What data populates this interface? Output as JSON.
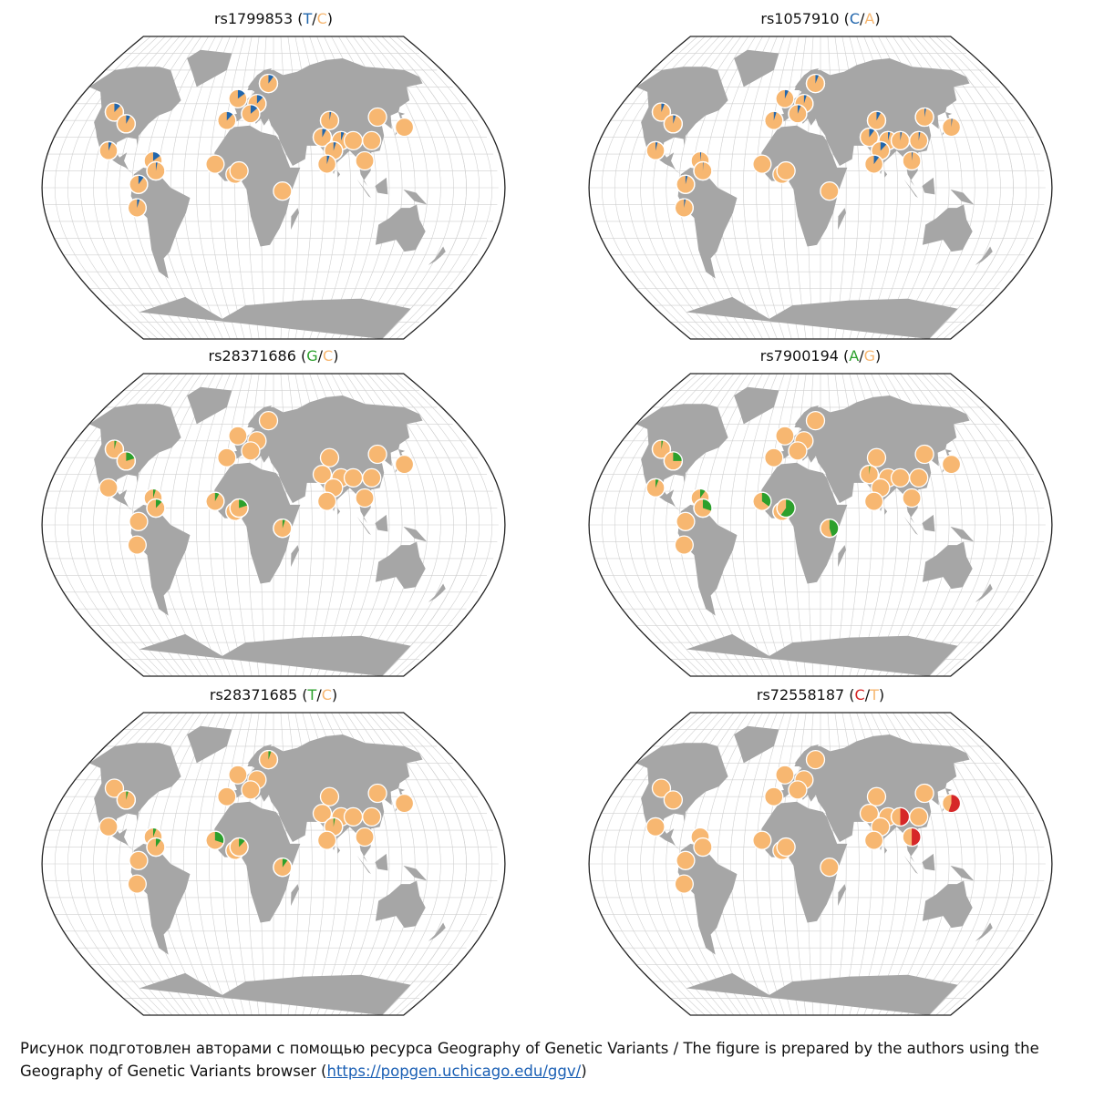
{
  "colors": {
    "ocean": "#ffffff",
    "land": "#a6a6a6",
    "grid": "#d0d0d0",
    "border": "#222222",
    "pie_outline": "#ffffff",
    "allele_common": "#f7b771",
    "blue": "#2166ac",
    "green": "#2ca02c",
    "red": "#d62728"
  },
  "panels": [
    {
      "rsid": "rs1799853",
      "open": " (",
      "a1": "T",
      "sep": "/",
      "a2": "C",
      "close": ")",
      "a1_color": "#2166ac",
      "a2_color": "#f7b771",
      "pies": [
        {
          "lon": 15,
          "lat": 50,
          "f": 0.12
        },
        {
          "lon": 25,
          "lat": 62,
          "f": 0.1
        },
        {
          "lon": -3,
          "lat": 53,
          "f": 0.15
        },
        {
          "lon": -10,
          "lat": 40,
          "f": 0.12
        },
        {
          "lon": 10,
          "lat": 44,
          "f": 0.14
        },
        {
          "lon": 78,
          "lat": 40,
          "f": 0.03
        },
        {
          "lon": 70,
          "lat": 30,
          "f": 0.08
        },
        {
          "lon": 85,
          "lat": 28,
          "f": 0.06
        },
        {
          "lon": 78,
          "lat": 22,
          "f": 0.05
        },
        {
          "lon": 72,
          "lat": 14,
          "f": 0.05
        },
        {
          "lon": 95,
          "lat": 28,
          "f": 0.0
        },
        {
          "lon": 110,
          "lat": 28,
          "f": 0.0
        },
        {
          "lon": 120,
          "lat": 42,
          "f": 0.0
        },
        {
          "lon": 140,
          "lat": 36,
          "f": 0.0
        },
        {
          "lon": 102,
          "lat": 16,
          "f": 0.0
        },
        {
          "lon": -110,
          "lat": 45,
          "f": 0.12
        },
        {
          "lon": -95,
          "lat": 38,
          "f": 0.08
        },
        {
          "lon": -102,
          "lat": 22,
          "f": 0.06
        },
        {
          "lon": -65,
          "lat": 16,
          "f": 0.15
        },
        {
          "lon": -62,
          "lat": 10,
          "f": 0.03
        },
        {
          "lon": -75,
          "lat": 2,
          "f": 0.1
        },
        {
          "lon": -77,
          "lat": -12,
          "f": 0.05
        },
        {
          "lon": -16,
          "lat": 14,
          "f": 0.0
        },
        {
          "lon": 0,
          "lat": 8,
          "f": 0.0
        },
        {
          "lon": 3,
          "lat": 10,
          "f": 0.0
        },
        {
          "lon": 37,
          "lat": -2,
          "f": 0.0
        }
      ]
    },
    {
      "rsid": "rs1057910",
      "open": " (",
      "a1": "C",
      "sep": "/",
      "a2": "A",
      "close": ")",
      "a1_color": "#2166ac",
      "a2_color": "#f7b771",
      "pies": [
        {
          "lon": 15,
          "lat": 50,
          "f": 0.05
        },
        {
          "lon": 25,
          "lat": 62,
          "f": 0.06
        },
        {
          "lon": -3,
          "lat": 53,
          "f": 0.07
        },
        {
          "lon": -10,
          "lat": 40,
          "f": 0.05
        },
        {
          "lon": 10,
          "lat": 44,
          "f": 0.06
        },
        {
          "lon": 78,
          "lat": 40,
          "f": 0.08
        },
        {
          "lon": 70,
          "lat": 30,
          "f": 0.1
        },
        {
          "lon": 85,
          "lat": 28,
          "f": 0.04
        },
        {
          "lon": 78,
          "lat": 22,
          "f": 0.12
        },
        {
          "lon": 72,
          "lat": 14,
          "f": 0.1
        },
        {
          "lon": 95,
          "lat": 28,
          "f": 0.03
        },
        {
          "lon": 110,
          "lat": 28,
          "f": 0.03
        },
        {
          "lon": 120,
          "lat": 42,
          "f": 0.03
        },
        {
          "lon": 140,
          "lat": 36,
          "f": 0.02
        },
        {
          "lon": 102,
          "lat": 16,
          "f": 0.02
        },
        {
          "lon": -110,
          "lat": 45,
          "f": 0.06
        },
        {
          "lon": -95,
          "lat": 38,
          "f": 0.05
        },
        {
          "lon": -102,
          "lat": 22,
          "f": 0.04
        },
        {
          "lon": -65,
          "lat": 16,
          "f": 0.02
        },
        {
          "lon": -62,
          "lat": 10,
          "f": 0.01
        },
        {
          "lon": -75,
          "lat": 2,
          "f": 0.04
        },
        {
          "lon": -77,
          "lat": -12,
          "f": 0.03
        },
        {
          "lon": -16,
          "lat": 14,
          "f": 0.0
        },
        {
          "lon": 0,
          "lat": 8,
          "f": 0.0
        },
        {
          "lon": 3,
          "lat": 10,
          "f": 0.0
        },
        {
          "lon": 37,
          "lat": -2,
          "f": 0.0
        }
      ]
    },
    {
      "rsid": "rs28371686",
      "open": " (",
      "a1": "G",
      "sep": "/",
      "a2": "C",
      "close": ")",
      "a1_color": "#2ca02c",
      "a2_color": "#f7b771",
      "pies": [
        {
          "lon": 15,
          "lat": 50,
          "f": 0.0
        },
        {
          "lon": 25,
          "lat": 62,
          "f": 0.0
        },
        {
          "lon": -3,
          "lat": 53,
          "f": 0.0
        },
        {
          "lon": -10,
          "lat": 40,
          "f": 0.0
        },
        {
          "lon": 10,
          "lat": 44,
          "f": 0.0
        },
        {
          "lon": 78,
          "lat": 40,
          "f": 0.0
        },
        {
          "lon": 70,
          "lat": 30,
          "f": 0.0
        },
        {
          "lon": 85,
          "lat": 28,
          "f": 0.0
        },
        {
          "lon": 78,
          "lat": 22,
          "f": 0.0
        },
        {
          "lon": 72,
          "lat": 14,
          "f": 0.0
        },
        {
          "lon": 95,
          "lat": 28,
          "f": 0.0
        },
        {
          "lon": 110,
          "lat": 28,
          "f": 0.0
        },
        {
          "lon": 120,
          "lat": 42,
          "f": 0.0
        },
        {
          "lon": 140,
          "lat": 36,
          "f": 0.0
        },
        {
          "lon": 102,
          "lat": 16,
          "f": 0.0
        },
        {
          "lon": -110,
          "lat": 45,
          "f": 0.04
        },
        {
          "lon": -95,
          "lat": 38,
          "f": 0.2
        },
        {
          "lon": -102,
          "lat": 22,
          "f": 0.0
        },
        {
          "lon": -65,
          "lat": 16,
          "f": 0.05
        },
        {
          "lon": -62,
          "lat": 10,
          "f": 0.12
        },
        {
          "lon": -75,
          "lat": 2,
          "f": 0.0
        },
        {
          "lon": -77,
          "lat": -12,
          "f": 0.0
        },
        {
          "lon": -16,
          "lat": 14,
          "f": 0.08
        },
        {
          "lon": 0,
          "lat": 8,
          "f": 0.06
        },
        {
          "lon": 3,
          "lat": 10,
          "f": 0.2
        },
        {
          "lon": 37,
          "lat": -2,
          "f": 0.05
        }
      ]
    },
    {
      "rsid": "rs7900194",
      "open": " (",
      "a1": "A",
      "sep": "/",
      "a2": "G",
      "close": ")",
      "a1_color": "#2ca02c",
      "a2_color": "#f7b771",
      "pies": [
        {
          "lon": 15,
          "lat": 50,
          "f": 0.0
        },
        {
          "lon": 25,
          "lat": 62,
          "f": 0.0
        },
        {
          "lon": -3,
          "lat": 53,
          "f": 0.0
        },
        {
          "lon": -10,
          "lat": 40,
          "f": 0.0
        },
        {
          "lon": 10,
          "lat": 44,
          "f": 0.0
        },
        {
          "lon": 78,
          "lat": 40,
          "f": 0.0
        },
        {
          "lon": 70,
          "lat": 30,
          "f": 0.02
        },
        {
          "lon": 85,
          "lat": 28,
          "f": 0.0
        },
        {
          "lon": 78,
          "lat": 22,
          "f": 0.0
        },
        {
          "lon": 72,
          "lat": 14,
          "f": 0.0
        },
        {
          "lon": 95,
          "lat": 28,
          "f": 0.0
        },
        {
          "lon": 110,
          "lat": 28,
          "f": 0.0
        },
        {
          "lon": 120,
          "lat": 42,
          "f": 0.0
        },
        {
          "lon": 140,
          "lat": 36,
          "f": 0.0
        },
        {
          "lon": 102,
          "lat": 16,
          "f": 0.0
        },
        {
          "lon": -110,
          "lat": 45,
          "f": 0.03
        },
        {
          "lon": -95,
          "lat": 38,
          "f": 0.25
        },
        {
          "lon": -102,
          "lat": 22,
          "f": 0.06
        },
        {
          "lon": -65,
          "lat": 16,
          "f": 0.1
        },
        {
          "lon": -62,
          "lat": 10,
          "f": 0.3
        },
        {
          "lon": -75,
          "lat": 2,
          "f": 0.0
        },
        {
          "lon": -77,
          "lat": -12,
          "f": 0.0
        },
        {
          "lon": -16,
          "lat": 14,
          "f": 0.35
        },
        {
          "lon": 0,
          "lat": 8,
          "f": 0.3
        },
        {
          "lon": 3,
          "lat": 10,
          "f": 0.6
        },
        {
          "lon": 37,
          "lat": -2,
          "f": 0.45
        }
      ]
    },
    {
      "rsid": "rs28371685",
      "open": " (",
      "a1": "T",
      "sep": "/",
      "a2": "C",
      "close": ")",
      "a1_color": "#2ca02c",
      "a2_color": "#f7b771",
      "pies": [
        {
          "lon": 15,
          "lat": 50,
          "f": 0.0
        },
        {
          "lon": 25,
          "lat": 62,
          "f": 0.05
        },
        {
          "lon": -3,
          "lat": 53,
          "f": 0.0
        },
        {
          "lon": -10,
          "lat": 40,
          "f": 0.0
        },
        {
          "lon": 10,
          "lat": 44,
          "f": 0.0
        },
        {
          "lon": 78,
          "lat": 40,
          "f": 0.0
        },
        {
          "lon": 70,
          "lat": 30,
          "f": 0.0
        },
        {
          "lon": 85,
          "lat": 28,
          "f": 0.0
        },
        {
          "lon": 78,
          "lat": 22,
          "f": 0.03
        },
        {
          "lon": 72,
          "lat": 14,
          "f": 0.0
        },
        {
          "lon": 95,
          "lat": 28,
          "f": 0.0
        },
        {
          "lon": 110,
          "lat": 28,
          "f": 0.0
        },
        {
          "lon": 120,
          "lat": 42,
          "f": 0.0
        },
        {
          "lon": 140,
          "lat": 36,
          "f": 0.0
        },
        {
          "lon": 102,
          "lat": 16,
          "f": 0.0
        },
        {
          "lon": -110,
          "lat": 45,
          "f": 0.0
        },
        {
          "lon": -95,
          "lat": 38,
          "f": 0.04
        },
        {
          "lon": -102,
          "lat": 22,
          "f": 0.0
        },
        {
          "lon": -65,
          "lat": 16,
          "f": 0.06
        },
        {
          "lon": -62,
          "lat": 10,
          "f": 0.1
        },
        {
          "lon": -75,
          "lat": 2,
          "f": 0.0
        },
        {
          "lon": -77,
          "lat": -12,
          "f": 0.0
        },
        {
          "lon": -16,
          "lat": 14,
          "f": 0.3
        },
        {
          "lon": 0,
          "lat": 8,
          "f": 0.1
        },
        {
          "lon": 3,
          "lat": 10,
          "f": 0.12
        },
        {
          "lon": 37,
          "lat": -2,
          "f": 0.1
        }
      ]
    },
    {
      "rsid": "rs72558187",
      "open": " (",
      "a1": "C",
      "sep": "/",
      "a2": "T",
      "close": ")",
      "a1_color": "#d62728",
      "a2_color": "#f7b771",
      "pies": [
        {
          "lon": 15,
          "lat": 50,
          "f": 0.0
        },
        {
          "lon": 25,
          "lat": 62,
          "f": 0.0
        },
        {
          "lon": -3,
          "lat": 53,
          "f": 0.0
        },
        {
          "lon": -10,
          "lat": 40,
          "f": 0.0
        },
        {
          "lon": 10,
          "lat": 44,
          "f": 0.0
        },
        {
          "lon": 78,
          "lat": 40,
          "f": 0.0
        },
        {
          "lon": 70,
          "lat": 30,
          "f": 0.0
        },
        {
          "lon": 85,
          "lat": 28,
          "f": 0.0
        },
        {
          "lon": 78,
          "lat": 22,
          "f": 0.0
        },
        {
          "lon": 72,
          "lat": 14,
          "f": 0.0
        },
        {
          "lon": 95,
          "lat": 28,
          "f": 0.5
        },
        {
          "lon": 110,
          "lat": 28,
          "f": 0.0
        },
        {
          "lon": 120,
          "lat": 42,
          "f": 0.0
        },
        {
          "lon": 140,
          "lat": 36,
          "f": 0.55
        },
        {
          "lon": 102,
          "lat": 16,
          "f": 0.5
        },
        {
          "lon": -110,
          "lat": 45,
          "f": 0.0
        },
        {
          "lon": -95,
          "lat": 38,
          "f": 0.0
        },
        {
          "lon": -102,
          "lat": 22,
          "f": 0.0
        },
        {
          "lon": -65,
          "lat": 16,
          "f": 0.0
        },
        {
          "lon": -62,
          "lat": 10,
          "f": 0.0
        },
        {
          "lon": -75,
          "lat": 2,
          "f": 0.0
        },
        {
          "lon": -77,
          "lat": -12,
          "f": 0.0
        },
        {
          "lon": -16,
          "lat": 14,
          "f": 0.0
        },
        {
          "lon": 0,
          "lat": 8,
          "f": 0.0
        },
        {
          "lon": 3,
          "lat": 10,
          "f": 0.0
        },
        {
          "lon": 37,
          "lat": -2,
          "f": 0.0
        }
      ]
    }
  ],
  "caption": {
    "text": "Рисунок подготовлен авторами с помощью ресурса Geography of Genetic Variants / The figure is prepared by the authors using the Geography of Genetic Variants browser (",
    "link_text": "https://popgen.uchicago.edu/ggv/",
    "link_href": "https://popgen.uchicago.edu/ggv/",
    "close": ")"
  }
}
